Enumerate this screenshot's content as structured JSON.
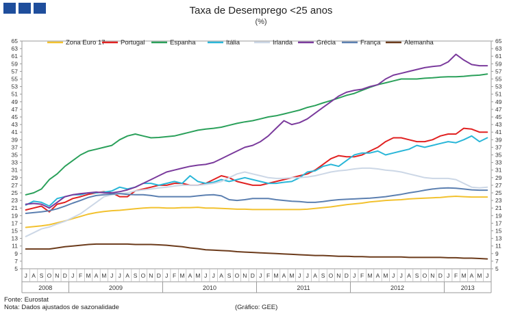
{
  "logo_blocks": [
    "block-1",
    "block-2",
    "block-3"
  ],
  "chart_data": {
    "type": "line",
    "title": "Taxa de Desemprego <25 anos",
    "subtitle": "(%)",
    "ylim": [
      5,
      65
    ],
    "yticks": [
      5,
      7,
      9,
      11,
      13,
      15,
      17,
      19,
      21,
      23,
      25,
      27,
      29,
      31,
      33,
      35,
      37,
      39,
      41,
      43,
      45,
      47,
      49,
      51,
      53,
      55,
      57,
      59,
      61,
      63,
      65
    ],
    "months": [
      "J",
      "A",
      "S",
      "O",
      "N",
      "D",
      "J",
      "F",
      "M",
      "A",
      "M",
      "J",
      "J",
      "A",
      "S",
      "O",
      "N",
      "D",
      "J",
      "F",
      "M",
      "A",
      "M",
      "J",
      "J",
      "A",
      "S",
      "O",
      "N",
      "D",
      "J",
      "F",
      "M",
      "A",
      "M",
      "J",
      "J",
      "A",
      "S",
      "O",
      "N",
      "D",
      "J",
      "F",
      "M",
      "A",
      "M",
      "J",
      "J",
      "A",
      "S",
      "O",
      "N",
      "D",
      "J",
      "F",
      "M",
      "A",
      "M",
      "J"
    ],
    "years": [
      {
        "label": "2008",
        "start": 0,
        "end": 6
      },
      {
        "label": "2009",
        "start": 6,
        "end": 18
      },
      {
        "label": "2010",
        "start": 18,
        "end": 30
      },
      {
        "label": "2011",
        "start": 30,
        "end": 42
      },
      {
        "label": "2012",
        "start": 42,
        "end": 54
      },
      {
        "label": "2013",
        "start": 54,
        "end": 60
      }
    ],
    "series": [
      {
        "name": "Zona Euro 17",
        "color": "#f2c12e",
        "values": [
          15.9,
          16.1,
          16.3,
          16.6,
          17.1,
          17.6,
          18.2,
          18.8,
          19.4,
          19.8,
          20.1,
          20.3,
          20.4,
          20.6,
          20.8,
          21.0,
          21.1,
          21.1,
          21.0,
          21.0,
          21.1,
          21.1,
          21.2,
          21.0,
          21.0,
          20.9,
          20.8,
          20.7,
          20.7,
          20.6,
          20.6,
          20.6,
          20.6,
          20.6,
          20.6,
          20.6,
          20.7,
          20.9,
          21.1,
          21.3,
          21.6,
          21.9,
          22.1,
          22.3,
          22.6,
          22.8,
          23.0,
          23.1,
          23.2,
          23.4,
          23.5,
          23.6,
          23.7,
          23.8,
          24.0,
          24.1,
          24.0,
          23.9,
          23.9,
          23.9
        ]
      },
      {
        "name": "Portugal",
        "color": "#e02020",
        "values": [
          20.5,
          21.0,
          21.5,
          20.0,
          22.0,
          22.5,
          23.5,
          24.0,
          24.6,
          25.0,
          25.3,
          25.0,
          24.0,
          24.0,
          25.5,
          26.0,
          26.5,
          27.0,
          27.0,
          27.5,
          27.5,
          27.0,
          27.0,
          27.5,
          28.5,
          29.5,
          29.0,
          28.0,
          27.5,
          27.0,
          27.0,
          27.5,
          28.0,
          28.5,
          29.0,
          29.5,
          30.0,
          31.0,
          32.5,
          34.0,
          34.8,
          34.5,
          34.5,
          35.0,
          36.0,
          37.0,
          38.5,
          39.5,
          39.5,
          39.0,
          38.5,
          38.5,
          39.0,
          40.0,
          40.5,
          40.5,
          42.0,
          41.8,
          41.0,
          41.0
        ]
      },
      {
        "name": "Espanha",
        "color": "#2aa05a",
        "values": [
          24.5,
          25.0,
          26.0,
          28.5,
          30.0,
          32.0,
          33.5,
          35.0,
          36.0,
          36.5,
          37.0,
          37.5,
          39.0,
          40.0,
          40.5,
          40.0,
          39.5,
          39.6,
          39.8,
          40.0,
          40.5,
          41.0,
          41.5,
          41.8,
          42.0,
          42.3,
          42.8,
          43.3,
          43.7,
          44.0,
          44.5,
          45.0,
          45.3,
          45.8,
          46.3,
          46.8,
          47.5,
          48.0,
          48.7,
          49.3,
          50.0,
          50.7,
          51.2,
          52.0,
          52.8,
          53.5,
          54.0,
          54.5,
          55.0,
          55.0,
          55.0,
          55.2,
          55.3,
          55.5,
          55.6,
          55.6,
          55.7,
          55.9,
          56.0,
          56.3
        ]
      },
      {
        "name": "Itália",
        "color": "#29b6d8",
        "values": [
          21.8,
          22.8,
          22.5,
          21.5,
          23.5,
          24.0,
          24.5,
          24.5,
          25.0,
          25.0,
          25.2,
          25.5,
          26.5,
          26.0,
          26.5,
          27.5,
          27.5,
          27.0,
          27.5,
          28.0,
          27.5,
          29.5,
          28.0,
          27.5,
          27.8,
          28.5,
          28.0,
          28.5,
          29.0,
          28.5,
          28.0,
          27.5,
          27.5,
          27.8,
          28.0,
          29.0,
          30.5,
          30.8,
          32.0,
          32.5,
          32.0,
          33.5,
          35.0,
          35.5,
          35.5,
          36.0,
          35.0,
          35.5,
          36.0,
          36.5,
          37.5,
          37.0,
          37.5,
          38.0,
          38.5,
          38.2,
          39.0,
          40.0,
          38.5,
          39.5
        ]
      },
      {
        "name": "Irlanda",
        "color": "#ccd7e6",
        "values": [
          13.5,
          14.5,
          15.5,
          16.0,
          16.8,
          17.5,
          18.5,
          19.5,
          21.0,
          22.5,
          24.0,
          24.5,
          24.8,
          25.0,
          25.5,
          25.8,
          26.0,
          26.3,
          26.5,
          26.8,
          27.0,
          27.0,
          27.0,
          27.2,
          27.5,
          28.0,
          29.0,
          30.0,
          30.5,
          30.0,
          29.5,
          29.0,
          28.8,
          28.8,
          29.0,
          29.0,
          29.2,
          29.5,
          30.0,
          30.5,
          30.8,
          31.0,
          31.3,
          31.5,
          31.5,
          31.3,
          31.0,
          30.8,
          30.5,
          30.0,
          29.5,
          29.0,
          28.8,
          28.8,
          28.8,
          28.5,
          27.5,
          26.5,
          26.3,
          26.5
        ]
      },
      {
        "name": "Grécia",
        "color": "#7a3a9c",
        "values": [
          22.0,
          22.2,
          22.0,
          21.0,
          22.5,
          24.0,
          24.5,
          24.8,
          25.0,
          25.2,
          25.0,
          25.0,
          25.3,
          25.8,
          26.5,
          27.5,
          28.5,
          29.5,
          30.5,
          31.0,
          31.5,
          32.0,
          32.3,
          32.5,
          33.0,
          34.0,
          35.0,
          36.0,
          37.0,
          37.5,
          38.5,
          40.0,
          42.0,
          44.0,
          43.0,
          43.5,
          44.5,
          46.0,
          47.5,
          49.0,
          50.5,
          51.5,
          52.0,
          52.3,
          53.0,
          53.5,
          55.0,
          56.0,
          56.5,
          57.0,
          57.5,
          58.0,
          58.3,
          58.5,
          59.5,
          61.5,
          60.0,
          58.8,
          58.5,
          58.5
        ]
      },
      {
        "name": "França",
        "color": "#5b7fb0",
        "values": [
          19.6,
          19.8,
          20.0,
          20.3,
          20.8,
          21.5,
          22.3,
          23.0,
          23.8,
          24.3,
          24.5,
          24.7,
          24.8,
          24.6,
          24.5,
          24.5,
          24.3,
          24.0,
          24.0,
          24.0,
          24.0,
          24.0,
          24.2,
          24.4,
          24.5,
          24.2,
          23.2,
          23.0,
          23.2,
          23.5,
          23.5,
          23.5,
          23.2,
          23.0,
          22.8,
          22.7,
          22.5,
          22.5,
          22.7,
          23.0,
          23.2,
          23.3,
          23.4,
          23.5,
          23.6,
          23.8,
          24.0,
          24.3,
          24.6,
          25.0,
          25.3,
          25.7,
          26.0,
          26.2,
          26.3,
          26.2,
          26.0,
          25.8,
          25.7,
          25.7
        ]
      },
      {
        "name": "Alemanha",
        "color": "#6b3a1a",
        "values": [
          10.2,
          10.2,
          10.2,
          10.2,
          10.5,
          10.8,
          11.0,
          11.2,
          11.4,
          11.5,
          11.5,
          11.5,
          11.5,
          11.5,
          11.4,
          11.4,
          11.4,
          11.3,
          11.2,
          11.0,
          10.8,
          10.5,
          10.3,
          10.0,
          9.9,
          9.8,
          9.7,
          9.5,
          9.4,
          9.3,
          9.2,
          9.1,
          9.0,
          8.9,
          8.8,
          8.7,
          8.6,
          8.5,
          8.5,
          8.4,
          8.3,
          8.3,
          8.2,
          8.2,
          8.1,
          8.1,
          8.1,
          8.1,
          8.1,
          8.0,
          8.0,
          8.0,
          8.0,
          8.0,
          7.9,
          7.9,
          7.8,
          7.8,
          7.7,
          7.6
        ]
      }
    ]
  },
  "footer": {
    "source": "Fonte: Eurostat",
    "note": "Nota: Dados ajustados de sazonalidade",
    "graphic": "(Gráfico: GEE)"
  }
}
